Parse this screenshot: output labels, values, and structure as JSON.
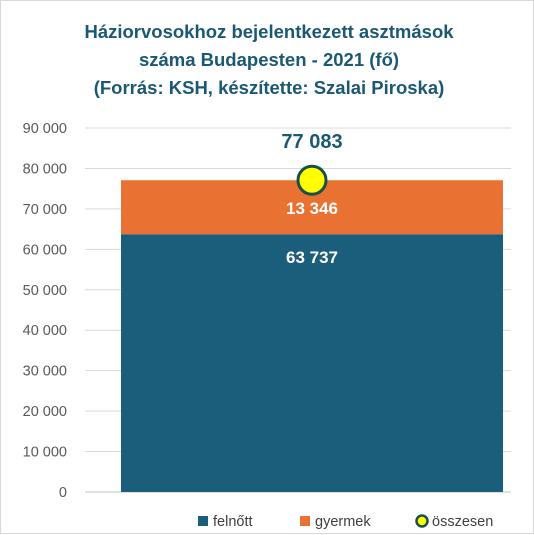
{
  "chart_data": {
    "type": "bar",
    "stacked": true,
    "title": [
      "Háziorvosokhoz bejelentkezett asztmások",
      "száma Budapesten - 2021 (fő)",
      "(Forrás: KSH, készítette: Szalai Piroska)"
    ],
    "categories": [
      ""
    ],
    "ylim": [
      0,
      90000
    ],
    "yticks": [
      0,
      10000,
      20000,
      30000,
      40000,
      50000,
      60000,
      70000,
      80000,
      90000
    ],
    "ytick_labels": [
      "0",
      "10 000",
      "20 000",
      "30 000",
      "40 000",
      "50 000",
      "60 000",
      "70 000",
      "80 000",
      "90 000"
    ],
    "grid": true,
    "legend_position": "bottom",
    "series": [
      {
        "name": "felnőtt",
        "values": [
          63737
        ],
        "color": "#1b5e7b",
        "data_labels": [
          "63 737"
        ]
      },
      {
        "name": "gyermek",
        "values": [
          13346
        ],
        "color": "#e97132",
        "data_labels": [
          "13 346"
        ]
      }
    ],
    "total": {
      "name": "összesen",
      "values": [
        77083
      ],
      "data_labels": [
        "77 083"
      ],
      "marker_fill": "#ffff00",
      "marker_stroke": "#1b4f4a"
    }
  }
}
